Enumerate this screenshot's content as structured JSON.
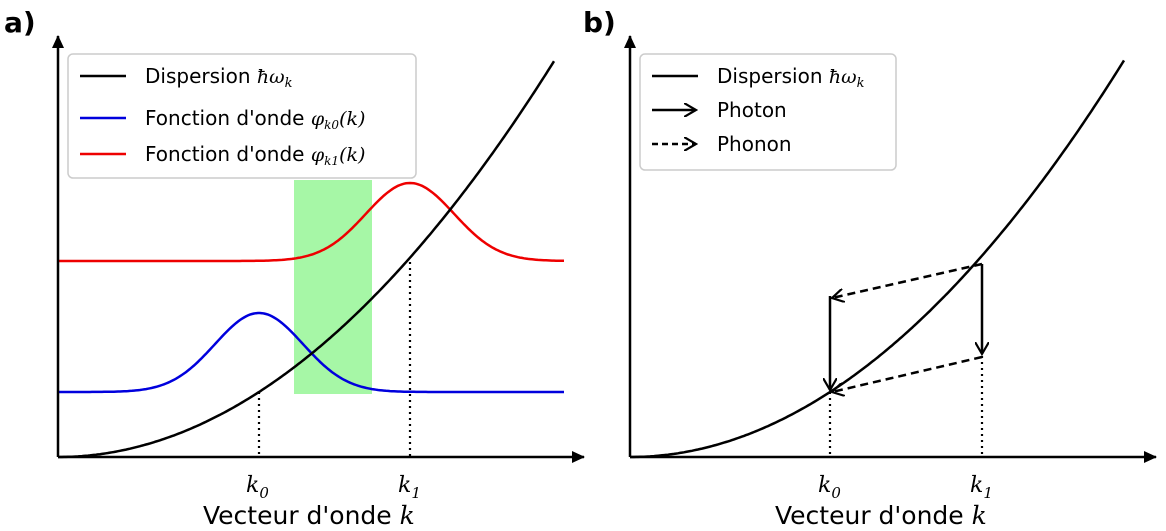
{
  "colors": {
    "dispersion": "#000000",
    "wavefunction_k0": "#0000dd",
    "wavefunction_k1": "#ee0000",
    "highlight": "#a6f7a6",
    "legend_border": "#cccccc"
  },
  "panel_a": {
    "label": "a)",
    "xlabel": "Vecteur d'onde ",
    "xlabel_symbol": "k",
    "ticks": [
      {
        "name": "k0",
        "base": "k",
        "sub": "0"
      },
      {
        "name": "k1",
        "base": "k",
        "sub": "1"
      }
    ],
    "legend": [
      {
        "text": "Dispersion ",
        "math": "ħω",
        "math_sub": "k",
        "style": "solid",
        "color": "#000000"
      },
      {
        "text": "Fonction d'onde ",
        "math": "φ",
        "math_sub": "k0",
        "math_tail": "(k)",
        "style": "solid",
        "color": "#0000dd"
      },
      {
        "text": "Fonction d'onde ",
        "math": "φ",
        "math_sub": "k1",
        "math_tail": "(k)",
        "style": "solid",
        "color": "#ee0000"
      }
    ]
  },
  "panel_b": {
    "label": "b)",
    "xlabel": "Vecteur d'onde ",
    "xlabel_symbol": "k",
    "ticks": [
      {
        "name": "k0",
        "base": "k",
        "sub": "0"
      },
      {
        "name": "k1",
        "base": "k",
        "sub": "1"
      }
    ],
    "legend": [
      {
        "text": "Dispersion ",
        "math": "ħω",
        "math_sub": "k",
        "style": "solid"
      },
      {
        "text": "Photon",
        "style": "solid-arrow"
      },
      {
        "text": "Phonon",
        "style": "dashed-arrow"
      }
    ]
  }
}
